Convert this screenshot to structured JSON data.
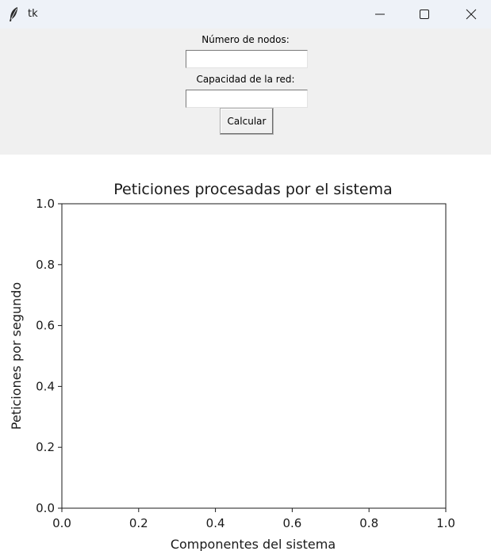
{
  "window": {
    "title": "tk",
    "icons": {
      "app": "feather-icon",
      "minimize": "minimize-icon",
      "maximize": "maximize-icon",
      "close": "close-icon"
    }
  },
  "form": {
    "nodes_label": "Número de nodos:",
    "nodes_value": "",
    "capacity_label": "Capacidad de la red:",
    "capacity_value": "",
    "calculate_label": "Calcular"
  },
  "chart_data": {
    "type": "line",
    "title": "Peticiones procesadas por el sistema",
    "xlabel": "Componentes del sistema",
    "ylabel": "Peticiones por segundo",
    "xlim": [
      0.0,
      1.0
    ],
    "ylim": [
      0.0,
      1.0
    ],
    "xticks": [
      "0.0",
      "0.2",
      "0.4",
      "0.6",
      "0.8",
      "1.0"
    ],
    "yticks": [
      "0.0",
      "0.2",
      "0.4",
      "0.6",
      "0.8",
      "1.0"
    ],
    "series": [],
    "grid": false
  }
}
